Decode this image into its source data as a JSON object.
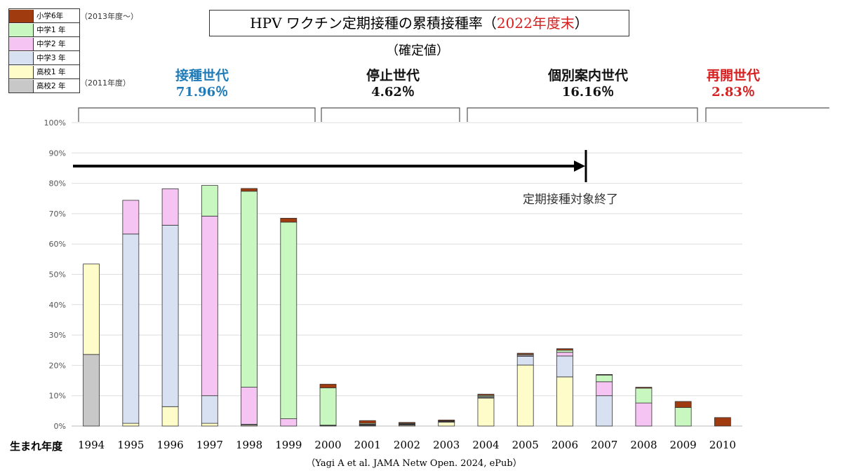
{
  "legend": {
    "items": [
      {
        "label": "小学6年",
        "color": "#a03a0f"
      },
      {
        "label": "中学1 年",
        "color": "#c8f7c0"
      },
      {
        "label": "中学2 年",
        "color": "#f6c4f2"
      },
      {
        "label": "中学3 年",
        "color": "#d7e1f2"
      },
      {
        "label": "高校1 年",
        "color": "#fefcc8"
      },
      {
        "label": "高校2 年",
        "color": "#c8c8c8"
      }
    ],
    "note_2013": "（2013年度～）",
    "note_2011": "（2011年度）"
  },
  "title": {
    "main": "HPV ワクチン定期接種の累積接種率（",
    "accent": "2022年度末",
    "close": "）",
    "subtitle": "（確定値）"
  },
  "generations": [
    {
      "name": "接種世代",
      "pct": "71.96％",
      "color": "#1f7ab8"
    },
    {
      "name": "停止世代",
      "pct": "4.62％",
      "color": "#111111"
    },
    {
      "name": "個別案内世代",
      "pct": "16.16％",
      "color": "#111111"
    },
    {
      "name": "再開世代",
      "pct": "2.83％",
      "color": "#d62020"
    }
  ],
  "annotation": "定期接種対象終了",
  "citation": "（Yagi A et al. JAMA Netw Open. 2024, ePub）",
  "chart_data": {
    "type": "bar",
    "stacked": true,
    "xlabel": "生まれ年度",
    "ylabel": "",
    "ylim": [
      0,
      100
    ],
    "yticks": [
      "0%",
      "10%",
      "20%",
      "30%",
      "40%",
      "50%",
      "60%",
      "70%",
      "80%",
      "90%",
      "100%"
    ],
    "grid": true,
    "categories": [
      "1994",
      "1995",
      "1996",
      "1997",
      "1998",
      "1999",
      "2000",
      "2001",
      "2002",
      "2003",
      "2004",
      "2005",
      "2006",
      "2007",
      "2008",
      "2009",
      "2010"
    ],
    "series": [
      {
        "name": "高校2 年",
        "color": "#c8c8c8",
        "values": [
          23.6,
          0,
          0,
          0,
          0,
          0,
          0,
          0,
          0,
          0,
          0,
          0,
          0,
          0,
          0,
          0,
          0
        ]
      },
      {
        "name": "高校1 年",
        "color": "#fefcc8",
        "values": [
          29.8,
          0.9,
          6.4,
          0.9,
          0.3,
          0,
          0,
          0.2,
          0.3,
          1.3,
          9.2,
          20.1,
          16.2,
          0,
          0,
          0,
          0
        ]
      },
      {
        "name": "中学3 年",
        "color": "#d7e1f2",
        "values": [
          0,
          62.4,
          59.8,
          9.1,
          0.3,
          0,
          0.2,
          0.2,
          0.2,
          0.2,
          0.3,
          2.9,
          6.9,
          10.0,
          0,
          0,
          0
        ]
      },
      {
        "name": "中学2 年",
        "color": "#f6c4f2",
        "values": [
          0,
          11.1,
          12.0,
          59.2,
          12.2,
          2.4,
          0.1,
          0.2,
          0.2,
          0.1,
          0.2,
          0.3,
          1.2,
          4.6,
          7.6,
          0,
          0
        ]
      },
      {
        "name": "中学1 年",
        "color": "#c8f7c0",
        "values": [
          0,
          0,
          0,
          10.1,
          64.6,
          64.8,
          12.3,
          0.3,
          0.2,
          0.1,
          0.4,
          0.3,
          0.7,
          2.2,
          4.9,
          6.1,
          0
        ]
      },
      {
        "name": "小学6年",
        "color": "#a03a0f",
        "values": [
          0,
          0,
          0,
          0,
          0.9,
          1.3,
          1.2,
          0.9,
          0.3,
          0.3,
          0.4,
          0.4,
          0.5,
          0.2,
          0.3,
          2.0,
          2.8
        ]
      }
    ]
  }
}
